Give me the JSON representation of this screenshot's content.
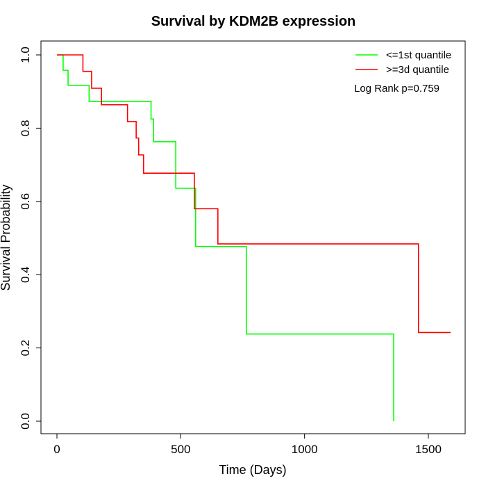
{
  "chart_data": {
    "type": "line",
    "subtype": "kaplan-meier-step",
    "title": "Survival by KDM2B expression",
    "xlabel": "Time (Days)",
    "ylabel": "Survival Probability",
    "xlim": [
      0,
      1600
    ],
    "ylim": [
      0,
      1.0
    ],
    "x_ticks": [
      0,
      500,
      1000,
      1500
    ],
    "x_tick_labels": [
      "0",
      "500",
      "1000",
      "1500"
    ],
    "y_ticks": [
      0.0,
      0.2,
      0.4,
      0.6,
      0.8,
      1.0
    ],
    "y_tick_labels": [
      "0.0",
      "0.2",
      "0.4",
      "0.6",
      "0.8",
      "1.0"
    ],
    "grid": false,
    "legend_position": "top-right",
    "annotation": "Log Rank p=0.759",
    "series": [
      {
        "name": "<=1st quantile",
        "color": "#00ff00",
        "x": [
          0,
          25,
          45,
          130,
          380,
          390,
          480,
          555,
          560,
          765,
          1360,
          1360
        ],
        "y": [
          1.0,
          0.958,
          0.917,
          0.873,
          0.825,
          0.763,
          0.636,
          0.636,
          0.477,
          0.238,
          0.238,
          0.0
        ]
      },
      {
        "name": ">=3d quantile",
        "color": "#ff0000",
        "x": [
          0,
          105,
          140,
          180,
          285,
          320,
          330,
          350,
          555,
          650,
          1460,
          1590
        ],
        "y": [
          1.0,
          0.955,
          0.909,
          0.864,
          0.818,
          0.773,
          0.727,
          0.677,
          0.58,
          0.484,
          0.242,
          0.242
        ]
      }
    ]
  }
}
